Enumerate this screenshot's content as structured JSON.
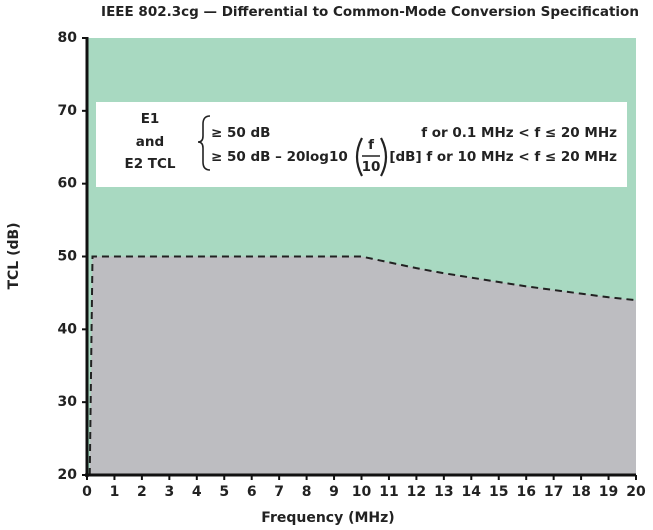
{
  "chart_data": {
    "type": "area",
    "title": "IEEE 802.3cg — Differential to Common-Mode Conversion Specification",
    "x_label": "Frequency (MHz)",
    "y_label": "TCL (dB)",
    "x": [
      0.1,
      0.2,
      10,
      11,
      12,
      13,
      14,
      15,
      16,
      17,
      18,
      19,
      20
    ],
    "values": [
      20,
      50,
      50,
      49.2,
      48.4,
      47.7,
      47.1,
      46.5,
      45.9,
      45.4,
      44.9,
      44.4,
      44.0
    ],
    "color": "#bdbdc1",
    "above_color": "#a8d9c1",
    "line_color": "#222222",
    "line_style": "dashed",
    "xlim": [
      0,
      20
    ],
    "ylim": [
      20,
      80
    ],
    "xticks": [
      0,
      1,
      2,
      3,
      4,
      5,
      6,
      7,
      8,
      9,
      10,
      11,
      12,
      13,
      14,
      15,
      16,
      17,
      18,
      19,
      20
    ],
    "yticks": [
      20,
      30,
      40,
      50,
      60,
      70,
      80
    ],
    "annotation": {
      "label_lines": [
        "E1",
        "and",
        "E2 TCL"
      ],
      "row1_value": "≥ 50 dB",
      "row1_range": "f or 0.1 MHz < f ≤ 20 MHz",
      "row2_value": "≥ 50 dB – 20log10",
      "row2_numerator": "f",
      "row2_denominator": "10",
      "row2_range": "[dB] f or 10 MHz < f ≤ 20 MHz"
    }
  }
}
